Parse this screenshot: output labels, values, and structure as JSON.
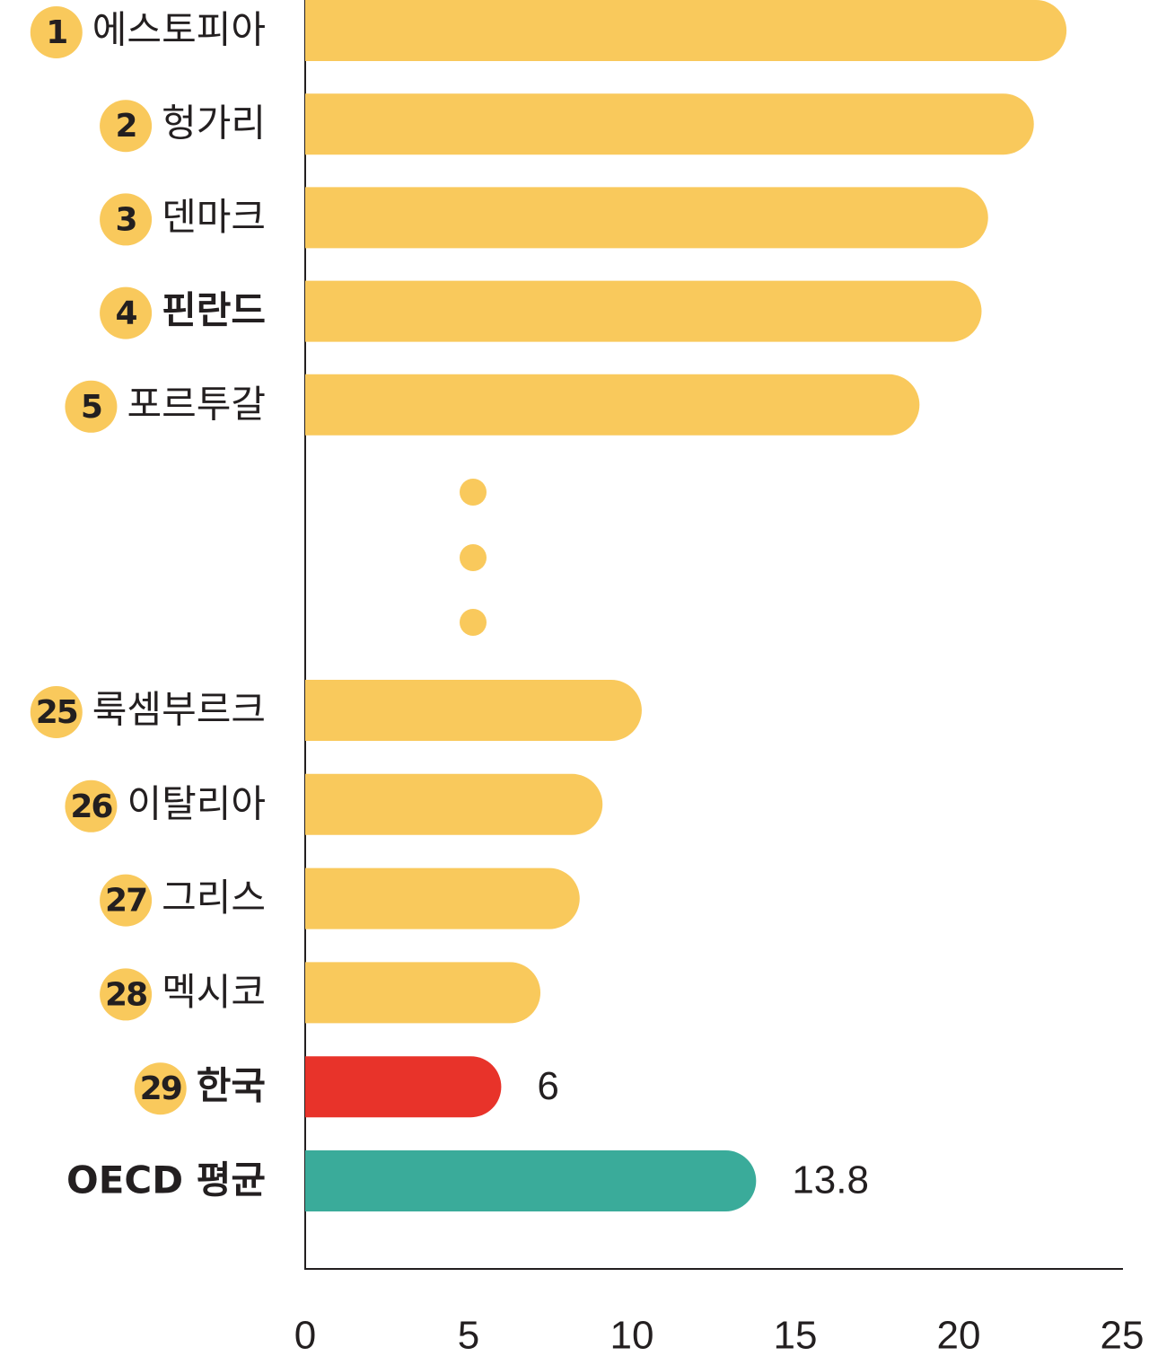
{
  "chart_data": {
    "type": "bar",
    "orientation": "horizontal",
    "categories": [
      "에스토피아",
      "헝가리",
      "덴마크",
      "핀란드",
      "포르투갈",
      "룩셈부르크",
      "이탈리아",
      "그리스",
      "멕시코",
      "한국",
      "OECD 평균"
    ],
    "ranks": [
      1,
      2,
      3,
      4,
      5,
      25,
      26,
      27,
      28,
      29,
      null
    ],
    "bold": [
      false,
      false,
      false,
      true,
      false,
      false,
      false,
      false,
      false,
      true,
      true
    ],
    "values": [
      23.3,
      22.3,
      20.9,
      20.7,
      18.8,
      10.3,
      9.1,
      8.4,
      7.2,
      6,
      13.8
    ],
    "color": "#f9c95c",
    "colors": [
      "#f9c95c",
      "#f9c95c",
      "#f9c95c",
      "#f9c95c",
      "#f9c95c",
      "#f9c95c",
      "#f9c95c",
      "#f9c95c",
      "#f9c95c",
      "#e8332a",
      "#3aab9a"
    ],
    "xlim": [
      0,
      25
    ],
    "xticks": [
      0,
      5,
      10,
      15,
      20,
      25
    ]
  }
}
